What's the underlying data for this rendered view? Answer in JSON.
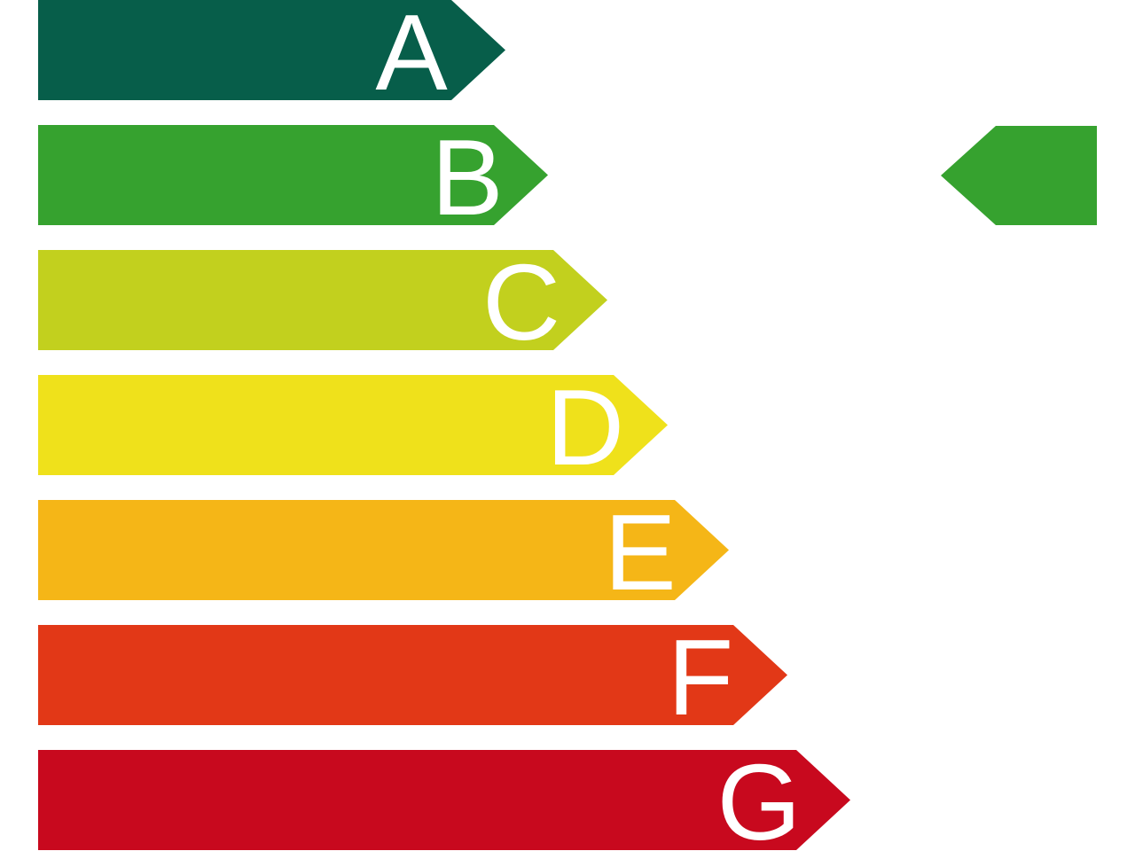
{
  "classes": [
    {
      "label": "A",
      "color": "#075e4a"
    },
    {
      "label": "B",
      "color": "#36a22f"
    },
    {
      "label": "C",
      "color": "#c2d01e"
    },
    {
      "label": "D",
      "color": "#efe11b"
    },
    {
      "label": "E",
      "color": "#f5b617"
    },
    {
      "label": "F",
      "color": "#e23817"
    },
    {
      "label": "G",
      "color": "#c8091e"
    }
  ],
  "indicator": {
    "rating": "B",
    "color": "#36a22f"
  }
}
